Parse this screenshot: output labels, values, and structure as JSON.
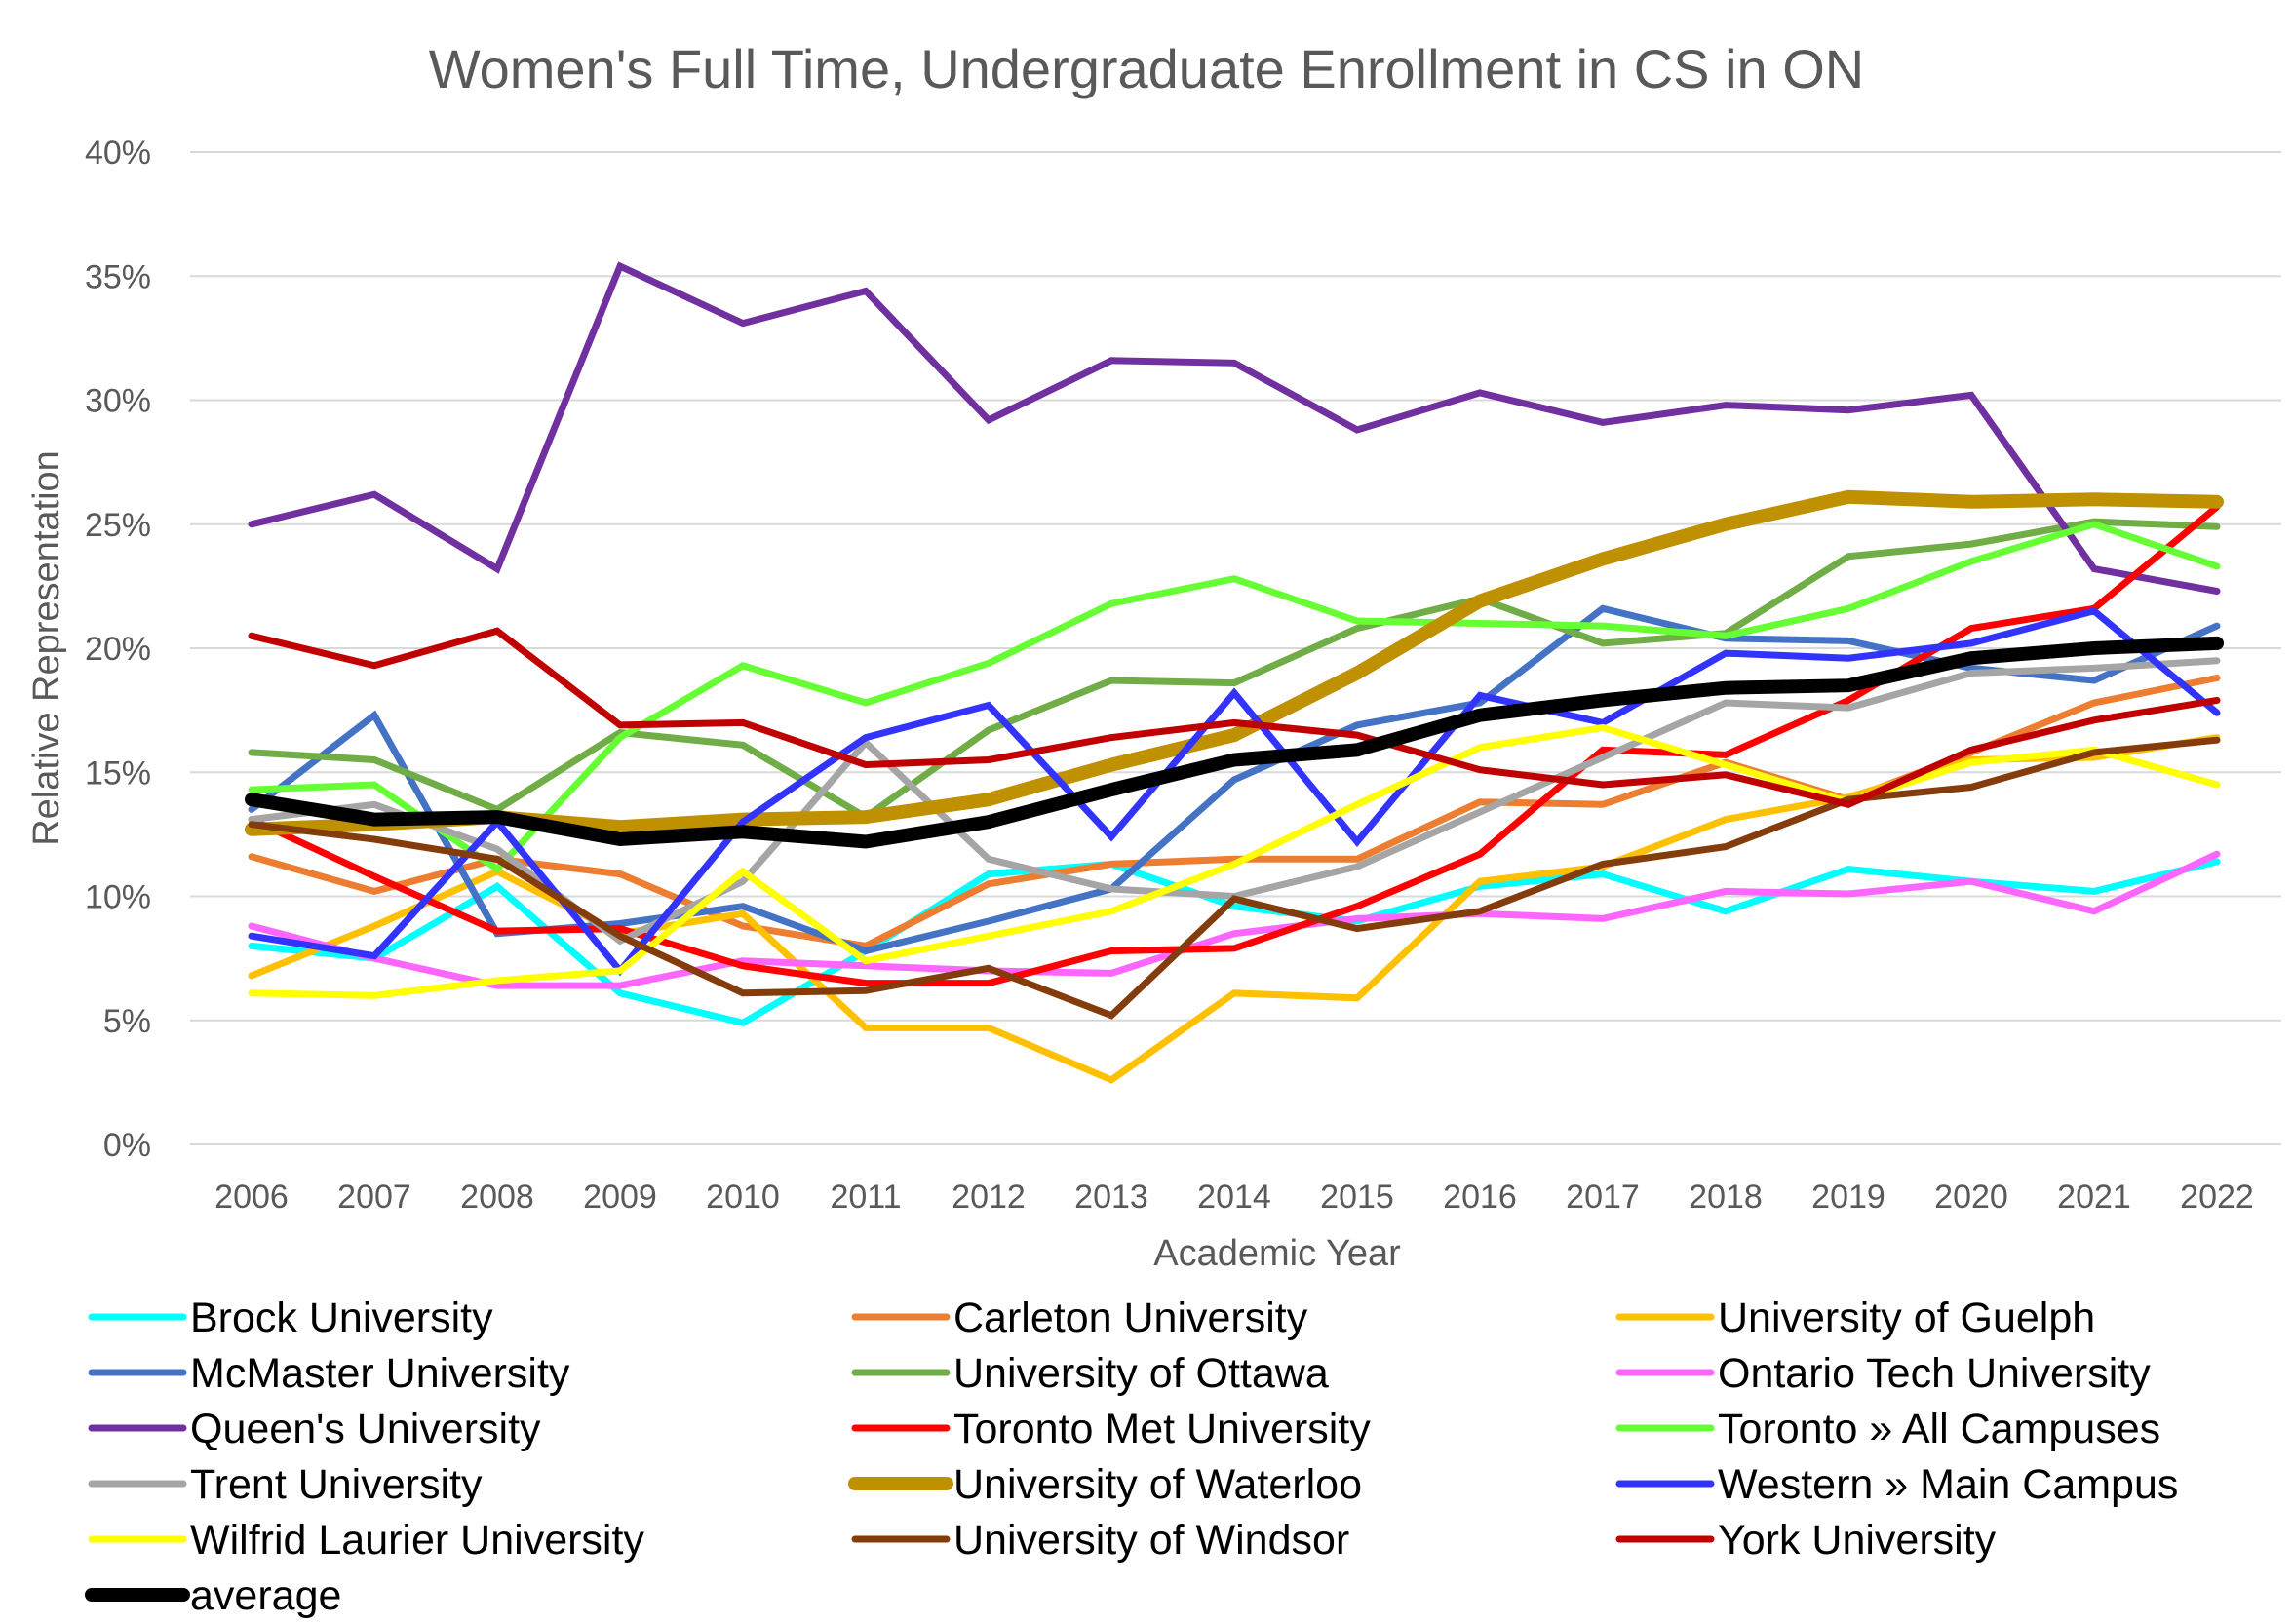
{
  "chart_data": {
    "type": "line",
    "title": "Women's Full Time, Undergraduate Enrollment in CS in ON",
    "xlabel": "Academic Year",
    "ylabel": "Relative Representation",
    "ylim": [
      0,
      40
    ],
    "yticks": [
      "0%",
      "5%",
      "10%",
      "15%",
      "20%",
      "25%",
      "30%",
      "35%",
      "40%"
    ],
    "grid": true,
    "legend_position": "bottom",
    "categories": [
      "2006",
      "2007",
      "2008",
      "2009",
      "2010",
      "2011",
      "2012",
      "2013",
      "2014",
      "2015",
      "2016",
      "2017",
      "2018",
      "2019",
      "2020",
      "2021",
      "2022"
    ],
    "series": [
      {
        "name": "Brock University",
        "color": "#00FFFF",
        "values": [
          8.0,
          7.5,
          10.4,
          6.1,
          4.9,
          7.8,
          10.9,
          11.3,
          9.6,
          9.0,
          10.4,
          10.9,
          9.4,
          11.1,
          10.6,
          10.2,
          11.4
        ]
      },
      {
        "name": "Carleton University",
        "color": "#ED7D31",
        "values": [
          11.6,
          10.2,
          11.5,
          10.9,
          8.8,
          8.0,
          10.5,
          11.3,
          11.5,
          11.5,
          13.8,
          13.7,
          15.4,
          13.9,
          15.8,
          17.8,
          18.8
        ]
      },
      {
        "name": "University of Guelph",
        "color": "#FFC000",
        "values": [
          6.8,
          8.8,
          11.0,
          8.5,
          9.3,
          4.7,
          4.7,
          2.6,
          6.1,
          5.9,
          10.6,
          11.2,
          13.1,
          14.0,
          15.5,
          15.6,
          16.4
        ]
      },
      {
        "name": "McMaster University",
        "color": "#4472C4",
        "values": [
          13.5,
          17.3,
          8.5,
          8.9,
          9.6,
          7.8,
          9.0,
          10.3,
          14.7,
          16.9,
          17.8,
          21.6,
          20.4,
          20.3,
          19.2,
          18.7,
          20.9
        ]
      },
      {
        "name": "University of Ottawa",
        "color": "#70AD47",
        "values": [
          15.8,
          15.5,
          13.5,
          16.6,
          16.1,
          13.2,
          16.7,
          18.7,
          18.6,
          20.8,
          22.0,
          20.2,
          20.6,
          23.7,
          24.2,
          25.1,
          24.9
        ]
      },
      {
        "name": "Ontario Tech University",
        "color": "#FF66FF",
        "values": [
          8.8,
          7.5,
          6.4,
          6.4,
          7.4,
          7.2,
          7.0,
          6.9,
          8.5,
          9.1,
          9.3,
          9.1,
          10.2,
          10.1,
          10.6,
          9.4,
          11.7
        ]
      },
      {
        "name": "Queen's University",
        "color": "#7030A0",
        "values": [
          25.0,
          26.2,
          23.2,
          35.4,
          33.1,
          34.4,
          29.2,
          31.6,
          31.5,
          28.8,
          30.3,
          29.1,
          29.8,
          29.6,
          30.2,
          23.2,
          22.3
        ]
      },
      {
        "name": "Toronto Met University",
        "color": "#FF0000",
        "values": [
          13.1,
          10.8,
          8.6,
          8.7,
          7.2,
          6.5,
          6.5,
          7.8,
          7.9,
          9.6,
          11.7,
          15.9,
          15.7,
          17.9,
          20.8,
          21.6,
          25.7
        ]
      },
      {
        "name": "Toronto » All Campuses",
        "color": "#66FF33",
        "values": [
          14.3,
          14.5,
          11.1,
          16.4,
          19.3,
          17.8,
          19.4,
          21.8,
          22.8,
          21.1,
          21.0,
          20.9,
          20.5,
          21.6,
          23.5,
          25.0,
          23.3
        ]
      },
      {
        "name": "Trent University",
        "color": "#A5A5A5",
        "values": [
          13.1,
          13.7,
          11.9,
          8.2,
          10.6,
          16.2,
          11.5,
          10.3,
          10.0,
          11.2,
          13.4,
          15.6,
          17.8,
          17.6,
          19.0,
          19.2,
          19.5
        ]
      },
      {
        "name": "University of Waterloo",
        "color": "#BF9000",
        "thick": true,
        "values": [
          12.7,
          12.9,
          13.2,
          12.8,
          13.1,
          13.2,
          13.9,
          15.3,
          16.5,
          19.0,
          21.9,
          23.6,
          25.0,
          26.1,
          25.9,
          26.0,
          25.9
        ]
      },
      {
        "name": "Western » Main Campus",
        "color": "#3333FF",
        "values": [
          8.4,
          7.6,
          13.0,
          7.0,
          13.0,
          16.4,
          17.7,
          12.4,
          18.2,
          12.2,
          18.1,
          17.0,
          19.8,
          19.6,
          20.2,
          21.5,
          17.4
        ]
      },
      {
        "name": "Wilfrid Laurier University",
        "color": "#FFFF00",
        "values": [
          6.1,
          6.0,
          6.6,
          7.0,
          11.0,
          7.4,
          8.4,
          9.4,
          11.3,
          13.7,
          16.0,
          16.8,
          15.3,
          13.8,
          15.4,
          15.9,
          14.5
        ]
      },
      {
        "name": "University of Windsor",
        "color": "#843C0C",
        "values": [
          12.9,
          12.3,
          11.5,
          8.4,
          6.1,
          6.2,
          7.1,
          5.2,
          9.9,
          8.7,
          9.4,
          11.3,
          12.0,
          13.9,
          14.4,
          15.8,
          16.3
        ]
      },
      {
        "name": "York University",
        "color": "#C00000",
        "values": [
          20.5,
          19.3,
          20.7,
          16.9,
          17.0,
          15.3,
          15.5,
          16.4,
          17.0,
          16.5,
          15.1,
          14.5,
          14.9,
          13.7,
          15.9,
          17.1,
          17.9
        ]
      },
      {
        "name": "average",
        "color": "#000000",
        "thick": true,
        "values": [
          13.9,
          13.1,
          13.2,
          12.3,
          12.6,
          12.2,
          13.0,
          14.3,
          15.5,
          15.9,
          17.3,
          17.9,
          18.4,
          18.5,
          19.6,
          20.0,
          20.2
        ]
      }
    ]
  }
}
